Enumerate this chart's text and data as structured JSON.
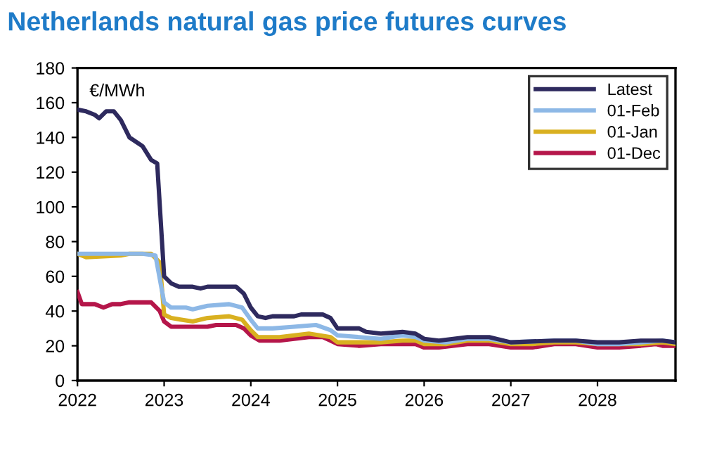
{
  "chart_data": {
    "type": "line",
    "title": "Netherlands natural gas price futures curves",
    "ylabel": "€/MWh",
    "xlim": [
      2022,
      2028.9
    ],
    "xticks": [
      2022,
      2023,
      2024,
      2025,
      2026,
      2027,
      2028
    ],
    "ylim": [
      0,
      180
    ],
    "yticks": [
      0,
      20,
      40,
      60,
      80,
      100,
      120,
      140,
      160,
      180
    ],
    "grid": false,
    "legend": "top right",
    "marker": "none",
    "line_style": "solid",
    "series": [
      {
        "name": "Latest",
        "color": "#2e2a5e",
        "x": [
          2022,
          2022.1,
          2022.2,
          2022.25,
          2022.33,
          2022.42,
          2022.5,
          2022.6,
          2022.75,
          2022.85,
          2022.92,
          2023.0,
          2023.08,
          2023.17,
          2023.33,
          2023.42,
          2023.5,
          2023.75,
          2023.83,
          2023.92,
          2024.0,
          2024.08,
          2024.17,
          2024.25,
          2024.5,
          2024.58,
          2024.83,
          2024.92,
          2025.0,
          2025.25,
          2025.33,
          2025.5,
          2025.75,
          2025.9,
          2026.0,
          2026.17,
          2026.5,
          2026.75,
          2027.0,
          2027.5,
          2027.75,
          2028.0,
          2028.25,
          2028.5,
          2028.75,
          2028.9
        ],
        "values": [
          156,
          155,
          153,
          151,
          155,
          155,
          150,
          140,
          135,
          127,
          125,
          60,
          56,
          54,
          54,
          53,
          54,
          54,
          54,
          50,
          42,
          37,
          36,
          37,
          37,
          38,
          38,
          36,
          30,
          30,
          28,
          27,
          28,
          27,
          24,
          23,
          25,
          25,
          22,
          23,
          23,
          22,
          22,
          23,
          23,
          22
        ]
      },
      {
        "name": "01-Feb",
        "color": "#8db8e6",
        "x": [
          2022,
          2022.5,
          2022.75,
          2022.9,
          2023.0,
          2023.08,
          2023.25,
          2023.33,
          2023.5,
          2023.75,
          2023.9,
          2024.0,
          2024.08,
          2024.25,
          2024.5,
          2024.75,
          2024.92,
          2025.0,
          2025.25,
          2025.5,
          2025.75,
          2025.9,
          2026.0,
          2026.25,
          2026.5,
          2026.75,
          2027.0,
          2027.5,
          2027.75,
          2028.0,
          2028.25,
          2028.5,
          2028.75,
          2028.9
        ],
        "values": [
          73,
          73,
          73,
          72,
          45,
          42,
          42,
          41,
          43,
          44,
          42,
          35,
          30,
          30,
          31,
          32,
          29,
          26,
          25,
          24,
          26,
          25,
          23,
          22,
          24,
          24,
          22,
          23,
          23,
          21,
          21,
          22,
          23,
          22
        ]
      },
      {
        "name": "01-Jan",
        "color": "#d9b020",
        "x": [
          2022,
          2022.1,
          2022.5,
          2022.6,
          2022.85,
          2022.95,
          2023.0,
          2023.08,
          2023.33,
          2023.5,
          2023.75,
          2023.9,
          2024.0,
          2024.08,
          2024.33,
          2024.5,
          2024.67,
          2024.92,
          2025.0,
          2025.5,
          2025.75,
          2025.9,
          2026.0,
          2026.25,
          2026.5,
          2026.75,
          2027.0,
          2027.25,
          2027.5,
          2027.75,
          2028.0,
          2028.25,
          2028.5,
          2028.75,
          2028.9
        ],
        "values": [
          73,
          71,
          72,
          73,
          73,
          68,
          38,
          36,
          34,
          36,
          37,
          35,
          29,
          25,
          25,
          26,
          27,
          25,
          22,
          22,
          23,
          23,
          21,
          21,
          23,
          23,
          21,
          21,
          22,
          22,
          21,
          21,
          21,
          22,
          21
        ]
      },
      {
        "name": "01-Dec",
        "color": "#b5164a",
        "x": [
          2022,
          2022.05,
          2022.2,
          2022.3,
          2022.4,
          2022.5,
          2022.6,
          2022.85,
          2022.95,
          2023.0,
          2023.08,
          2023.5,
          2023.6,
          2023.83,
          2023.92,
          2024.0,
          2024.1,
          2024.33,
          2024.5,
          2024.67,
          2024.83,
          2024.92,
          2025.0,
          2025.25,
          2025.5,
          2025.9,
          2026.0,
          2026.17,
          2026.5,
          2026.75,
          2027.0,
          2027.25,
          2027.5,
          2027.75,
          2028.0,
          2028.25,
          2028.5,
          2028.67,
          2028.75,
          2028.9
        ],
        "values": [
          51,
          44,
          44,
          42,
          44,
          44,
          45,
          45,
          40,
          34,
          31,
          31,
          32,
          32,
          30,
          26,
          23,
          23,
          24,
          25,
          25,
          23,
          21,
          20,
          21,
          21,
          19,
          19,
          21,
          21,
          19,
          19,
          21,
          21,
          19,
          19,
          20,
          21,
          20,
          20
        ]
      }
    ]
  }
}
